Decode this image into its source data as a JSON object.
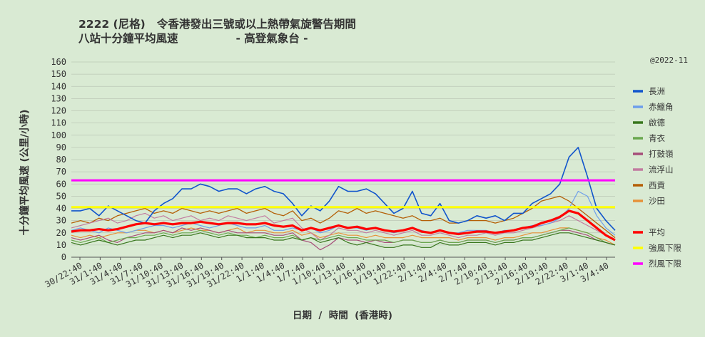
{
  "header": {
    "title_line1": "2222 (尼格)   令香港發出三號或以上熱帶氣旋警告期間",
    "title_line2": "八站十分鐘平均風速               - 高登氣象台 -",
    "copyright": "@2022-11"
  },
  "chart_data": {
    "type": "line",
    "title": "2222 (尼格)   令香港發出三號或以上熱帶氣旋警告期間 八站十分鐘平均風速 - 高登氣象台 -",
    "xlabel": "日期  /  時間  (香港時)",
    "ylabel": "十分鐘平均風速 (公里/小時)",
    "ylim": [
      0,
      160
    ],
    "yticks": [
      0,
      10,
      20,
      30,
      40,
      50,
      60,
      70,
      80,
      90,
      100,
      110,
      120,
      130,
      140,
      150,
      160
    ],
    "grid": true,
    "legend_position": "right",
    "x_tick_labels": [
      "30/22:40",
      "31/1:40",
      "31/4:40",
      "31/7:40",
      "31/10:40",
      "31/13:40",
      "31/16:40",
      "31/19:40",
      "31/22:40",
      "1/1:40",
      "1/4:40",
      "1/7:40",
      "1/10:40",
      "1/13:40",
      "1/16:40",
      "1/19:40",
      "1/22:40",
      "2/1:40",
      "2/4:40",
      "2/7:40",
      "2/10:40",
      "2/13:40",
      "2/16:40",
      "2/19:40",
      "2/22:40",
      "3/1:40",
      "3/4:40"
    ],
    "series": [
      {
        "name": "長洲",
        "color": "#1155cc",
        "width": 1.6,
        "values": [
          38,
          38,
          40,
          34,
          42,
          38,
          34,
          30,
          28,
          38,
          44,
          48,
          56,
          56,
          60,
          58,
          54,
          56,
          56,
          52,
          56,
          58,
          54,
          52,
          44,
          34,
          42,
          38,
          46,
          58,
          54,
          54,
          56,
          52,
          44,
          36,
          40,
          54,
          36,
          34,
          44,
          30,
          28,
          30,
          34,
          32,
          34,
          30,
          36,
          36,
          44,
          48,
          52,
          60,
          82,
          90,
          66,
          40,
          30,
          22
        ]
      },
      {
        "name": "赤鱲角",
        "color": "#6d9eeb",
        "width": 1.2,
        "values": [
          22,
          24,
          22,
          20,
          24,
          22,
          20,
          22,
          24,
          26,
          26,
          24,
          26,
          28,
          26,
          24,
          26,
          28,
          26,
          24,
          24,
          26,
          22,
          22,
          24,
          22,
          24,
          20,
          22,
          26,
          24,
          24,
          22,
          24,
          22,
          20,
          22,
          24,
          22,
          20,
          22,
          20,
          20,
          22,
          22,
          22,
          20,
          22,
          22,
          24,
          26,
          26,
          28,
          32,
          40,
          54,
          50,
          34,
          24,
          18
        ]
      },
      {
        "name": "啟德",
        "color": "#38761d",
        "width": 1.2,
        "values": [
          12,
          10,
          12,
          14,
          12,
          10,
          12,
          14,
          14,
          16,
          18,
          16,
          18,
          18,
          20,
          18,
          16,
          18,
          18,
          16,
          16,
          16,
          14,
          14,
          16,
          14,
          16,
          12,
          14,
          16,
          12,
          10,
          12,
          10,
          8,
          8,
          10,
          10,
          8,
          8,
          12,
          10,
          10,
          12,
          12,
          12,
          10,
          12,
          12,
          14,
          14,
          16,
          18,
          20,
          20,
          18,
          16,
          14,
          12,
          10
        ]
      },
      {
        "name": "青衣",
        "color": "#6aa84f",
        "width": 1.2,
        "values": [
          14,
          12,
          14,
          16,
          12,
          14,
          16,
          16,
          18,
          18,
          20,
          18,
          20,
          20,
          22,
          20,
          18,
          20,
          18,
          18,
          16,
          18,
          16,
          16,
          18,
          14,
          16,
          14,
          16,
          18,
          16,
          16,
          14,
          14,
          14,
          12,
          14,
          14,
          12,
          12,
          14,
          12,
          12,
          14,
          14,
          14,
          12,
          14,
          14,
          16,
          16,
          18,
          20,
          22,
          24,
          22,
          20,
          16,
          12,
          10
        ]
      },
      {
        "name": "打鼓嶺",
        "color": "#a64d79",
        "width": 1.2,
        "values": [
          16,
          14,
          16,
          18,
          14,
          12,
          16,
          18,
          20,
          20,
          22,
          20,
          24,
          22,
          24,
          22,
          20,
          22,
          20,
          20,
          20,
          20,
          18,
          18,
          20,
          14,
          12,
          6,
          10,
          16,
          14,
          14,
          12,
          14,
          12,
          12,
          14,
          14,
          12,
          12,
          14,
          12,
          12,
          14,
          14,
          14,
          12,
          14,
          14,
          16,
          16,
          18,
          20,
          22,
          22,
          20,
          18,
          14,
          12,
          10
        ]
      },
      {
        "name": "流浮山",
        "color": "#c27ba0",
        "width": 1.2,
        "values": [
          24,
          26,
          28,
          30,
          32,
          28,
          30,
          34,
          36,
          32,
          34,
          30,
          32,
          34,
          30,
          32,
          30,
          34,
          32,
          30,
          32,
          34,
          28,
          30,
          32,
          24,
          20,
          14,
          18,
          24,
          22,
          22,
          20,
          22,
          20,
          18,
          20,
          22,
          18,
          18,
          20,
          18,
          16,
          18,
          18,
          20,
          18,
          20,
          20,
          22,
          24,
          26,
          28,
          30,
          34,
          30,
          26,
          22,
          18,
          14
        ]
      },
      {
        "name": "西貢",
        "color": "#b45f06",
        "width": 1.3,
        "values": [
          28,
          30,
          28,
          32,
          30,
          34,
          36,
          38,
          40,
          36,
          38,
          36,
          40,
          38,
          36,
          38,
          36,
          38,
          40,
          36,
          38,
          40,
          36,
          34,
          38,
          30,
          32,
          28,
          32,
          38,
          36,
          40,
          36,
          38,
          36,
          34,
          32,
          34,
          30,
          30,
          32,
          28,
          28,
          30,
          30,
          30,
          28,
          30,
          32,
          36,
          40,
          46,
          48,
          50,
          46,
          40,
          34,
          28,
          22,
          16
        ]
      },
      {
        "name": "沙田",
        "color": "#e69138",
        "width": 1.2,
        "values": [
          18,
          16,
          18,
          16,
          18,
          20,
          20,
          22,
          22,
          20,
          22,
          20,
          22,
          24,
          22,
          22,
          20,
          22,
          24,
          20,
          22,
          22,
          20,
          20,
          22,
          18,
          20,
          16,
          18,
          20,
          18,
          18,
          16,
          18,
          16,
          16,
          16,
          18,
          16,
          16,
          16,
          16,
          14,
          16,
          16,
          16,
          14,
          16,
          16,
          18,
          20,
          20,
          22,
          24,
          24,
          22,
          20,
          16,
          14,
          10
        ]
      },
      {
        "name": "平均",
        "color": "#ff0000",
        "width": 3.2,
        "values": [
          21,
          22,
          22,
          23,
          22,
          23,
          25,
          27,
          28,
          27,
          28,
          27,
          28,
          28,
          29,
          28,
          27,
          28,
          28,
          27,
          27,
          28,
          26,
          25,
          26,
          22,
          24,
          22,
          24,
          26,
          24,
          25,
          23,
          24,
          22,
          21,
          22,
          24,
          21,
          20,
          22,
          20,
          19,
          20,
          21,
          21,
          20,
          21,
          22,
          24,
          25,
          28,
          30,
          33,
          38,
          36,
          30,
          24,
          18,
          14
        ]
      }
    ],
    "reference_lines": [
      {
        "name": "強風下限",
        "color": "#ffff00",
        "value": 41
      },
      {
        "name": "烈風下限",
        "color": "#ff00ff",
        "value": 63
      }
    ]
  }
}
